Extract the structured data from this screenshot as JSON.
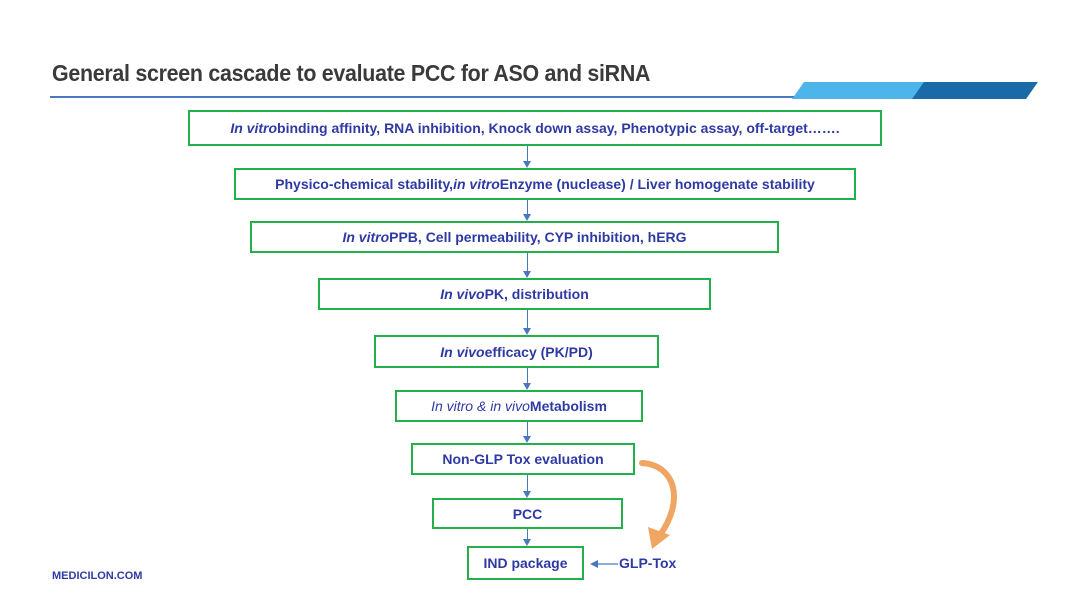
{
  "title": "General screen cascade to evaluate PCC for ASO and siRNA",
  "footer": "MEDICILON.COM",
  "colors": {
    "box_border": "#22b04b",
    "text": "#2e3aa3",
    "arrow": "#4a78c0",
    "curved_arrow": "#f0a562",
    "accent_light": "#4db5ea",
    "accent_dark": "#1a6aa8"
  },
  "steps": [
    {
      "segments": [
        {
          "text": "In vitro",
          "italic": true
        },
        {
          "text": " binding affinity, RNA inhibition, Knock down assay, Phenotypic assay, off-target……."
        }
      ]
    },
    {
      "segments": [
        {
          "text": "Physico-chemical stability,  "
        },
        {
          "text": "in vitro",
          "italic": true
        },
        {
          "text": " Enzyme (nuclease) / Liver homogenate stability"
        }
      ]
    },
    {
      "segments": [
        {
          "text": "In vitro",
          "italic": true
        },
        {
          "text": " PPB, Cell permeability, CYP inhibition, hERG"
        }
      ]
    },
    {
      "segments": [
        {
          "text": "In vivo",
          "italic": true
        },
        {
          "text": " PK, distribution"
        }
      ]
    },
    {
      "segments": [
        {
          "text": "In vivo",
          "italic": true
        },
        {
          "text": " efficacy (PK/PD)"
        }
      ]
    },
    {
      "segments": [
        {
          "text": "In vitro & in vivo ",
          "italic": true,
          "normal": true
        },
        {
          "text": "Metabolism"
        }
      ]
    },
    {
      "segments": [
        {
          "text": "Non-GLP Tox evaluation"
        }
      ]
    },
    {
      "segments": [
        {
          "text": "PCC"
        }
      ]
    },
    {
      "segments": [
        {
          "text": "IND package"
        }
      ]
    }
  ],
  "side_input": "GLP-Tox"
}
